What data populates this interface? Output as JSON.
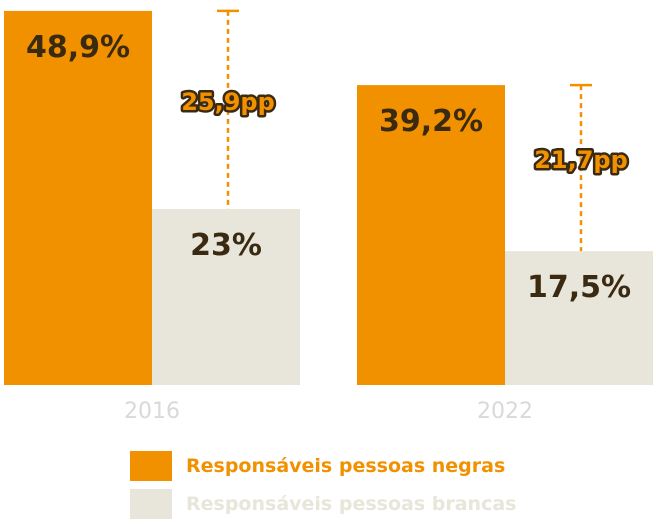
{
  "colors": {
    "negras": "#f29100",
    "brancas": "#e8e6da",
    "value_text": "#3a2a12",
    "year_text": "#d9d9d9"
  },
  "chart_data": {
    "type": "bar",
    "title": "",
    "categories": [
      "2016",
      "2022"
    ],
    "series": [
      {
        "name": "Responsáveis pessoas negras",
        "values": [
          48.9,
          39.2
        ],
        "labels": [
          "48,9%",
          "39,2%"
        ]
      },
      {
        "name": "Responsáveis pessoas brancas",
        "values": [
          23,
          17.5
        ],
        "labels": [
          "23%",
          "17,5%"
        ]
      }
    ],
    "gaps": [
      "25,9pp",
      "21,7pp"
    ],
    "ylim": [
      0,
      50
    ],
    "grid": false,
    "legend": "bottom"
  }
}
